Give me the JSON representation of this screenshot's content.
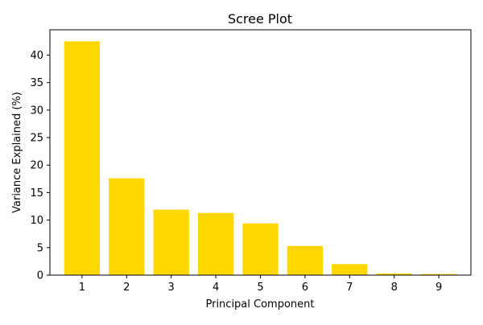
{
  "chart_data": {
    "type": "bar",
    "title": "Scree Plot",
    "xlabel": "Principal Component",
    "ylabel": "Variance Explained (%)",
    "categories": [
      "1",
      "2",
      "3",
      "4",
      "5",
      "6",
      "7",
      "8",
      "9"
    ],
    "values": [
      42.5,
      17.6,
      11.9,
      11.3,
      9.4,
      5.3,
      2.0,
      0.3,
      0.2
    ],
    "yticks": [
      0,
      5,
      10,
      15,
      20,
      25,
      30,
      35,
      40
    ],
    "ylim": [
      0,
      44.6
    ],
    "grid": false,
    "legend": "none",
    "bar_color": "#ffd700"
  }
}
